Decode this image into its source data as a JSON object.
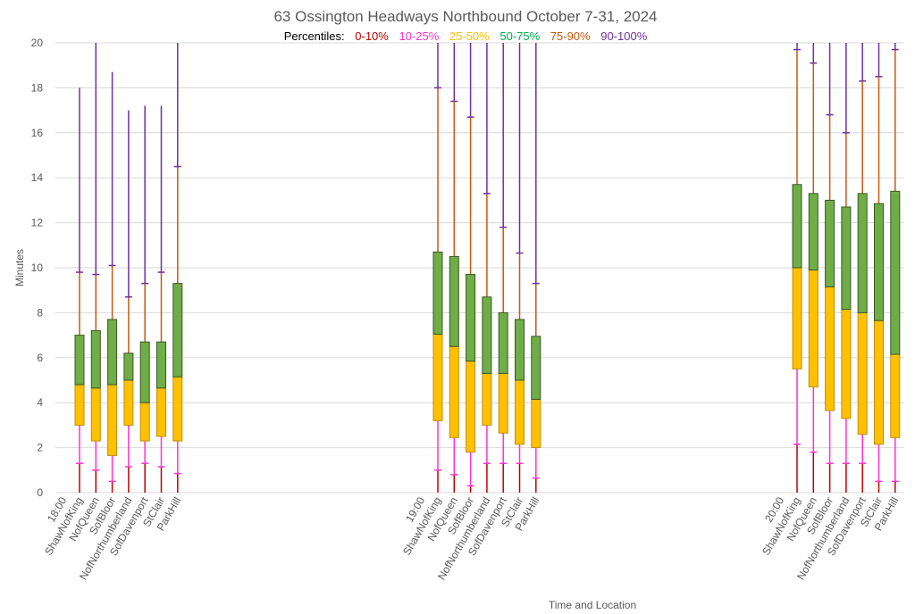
{
  "chart_data": {
    "type": "box",
    "title": "63 Ossington Headways Northbound October 7-31, 2024",
    "legend": {
      "prefix": "Percentiles:",
      "items": [
        {
          "label": "0-10%",
          "color": "#c00000"
        },
        {
          "label": "10-25%",
          "color": "#ff33cc"
        },
        {
          "label": "25-50%",
          "color": "#ffc000"
        },
        {
          "label": "50-75%",
          "color": "#00b050"
        },
        {
          "label": "75-90%",
          "color": "#c55a11"
        },
        {
          "label": "90-100%",
          "color": "#7030a0"
        }
      ]
    },
    "xlabel": "Time and Location",
    "ylabel": "Minutes",
    "ylim": [
      0,
      20
    ],
    "yticks": [
      0,
      2,
      4,
      6,
      8,
      10,
      12,
      14,
      16,
      18,
      20
    ],
    "gridlines": true,
    "colors": {
      "box_lower": "#ffc000",
      "box_upper": "#70ad47",
      "box_edge": "#385723",
      "whisker_0_10": "#c00000",
      "whisker_10_25": "#ff33cc",
      "whisker_75_90": "#c55a11",
      "whisker_90_100": "#7030a0"
    },
    "groups": [
      {
        "label": "18:00",
        "boxes": [
          {
            "location": "ShawNofKing",
            "p10": 1.3,
            "p25": 3.0,
            "p50": 4.8,
            "p75": 7.0,
            "p90": 9.8,
            "max": 18.0
          },
          {
            "location": "NofQueen",
            "p10": 1.0,
            "p25": 2.3,
            "p50": 4.65,
            "p75": 7.2,
            "p90": 9.7,
            "max": 20
          },
          {
            "location": "SofBloor",
            "p10": 0.5,
            "p25": 1.65,
            "p50": 4.8,
            "p75": 7.7,
            "p90": 10.1,
            "max": 18.7
          },
          {
            "location": "NofNorthumberland",
            "p10": 1.15,
            "p25": 3.0,
            "p50": 5.0,
            "p75": 6.2,
            "p90": 8.7,
            "max": 17.0
          },
          {
            "location": "SofDavenport",
            "p10": 1.3,
            "p25": 2.3,
            "p50": 4.0,
            "p75": 6.7,
            "p90": 9.3,
            "max": 17.2
          },
          {
            "location": "StClair",
            "p10": 1.15,
            "p25": 2.5,
            "p50": 4.65,
            "p75": 6.7,
            "p90": 9.8,
            "max": 17.2
          },
          {
            "location": "ParkHill",
            "p10": 0.85,
            "p25": 2.3,
            "p50": 5.15,
            "p75": 9.3,
            "p90": 14.5,
            "max": 20
          }
        ]
      },
      {
        "label": "19:00",
        "boxes": [
          {
            "location": "ShawNofKing",
            "p10": 1.0,
            "p25": 3.2,
            "p50": 7.05,
            "p75": 10.7,
            "p90": 18.0,
            "max": 20
          },
          {
            "location": "NofQueen",
            "p10": 0.8,
            "p25": 2.45,
            "p50": 6.5,
            "p75": 10.5,
            "p90": 17.4,
            "max": 20
          },
          {
            "location": "SofBloor",
            "p10": 0.3,
            "p25": 1.8,
            "p50": 5.85,
            "p75": 9.7,
            "p90": 16.7,
            "max": 20
          },
          {
            "location": "NofNorthumberland",
            "p10": 1.3,
            "p25": 3.0,
            "p50": 5.3,
            "p75": 8.7,
            "p90": 13.3,
            "max": 20
          },
          {
            "location": "SofDavenport",
            "p10": 1.3,
            "p25": 2.65,
            "p50": 5.3,
            "p75": 8.0,
            "p90": 11.8,
            "max": 20
          },
          {
            "location": "StClair",
            "p10": 1.3,
            "p25": 2.15,
            "p50": 5.0,
            "p75": 7.7,
            "p90": 10.65,
            "max": 20
          },
          {
            "location": "ParkHill",
            "p10": 0.65,
            "p25": 2.0,
            "p50": 4.15,
            "p75": 6.95,
            "p90": 9.3,
            "max": 20
          }
        ]
      },
      {
        "label": "20:00",
        "boxes": [
          {
            "location": "ShawNofKing",
            "p10": 2.15,
            "p25": 5.5,
            "p50": 10.0,
            "p75": 13.7,
            "p90": 19.7,
            "max": 20
          },
          {
            "location": "NofQueen",
            "p10": 1.8,
            "p25": 4.7,
            "p50": 9.9,
            "p75": 13.3,
            "p90": 19.1,
            "max": 20
          },
          {
            "location": "SofBloor",
            "p10": 1.3,
            "p25": 3.65,
            "p50": 9.15,
            "p75": 13.0,
            "p90": 16.8,
            "max": 20
          },
          {
            "location": "NofNorthumberland",
            "p10": 1.3,
            "p25": 3.3,
            "p50": 8.15,
            "p75": 12.7,
            "p90": 16.0,
            "max": 20
          },
          {
            "location": "SofDavenport",
            "p10": 1.3,
            "p25": 2.6,
            "p50": 8.0,
            "p75": 13.3,
            "p90": 18.3,
            "max": 20
          },
          {
            "location": "StClair",
            "p10": 0.5,
            "p25": 2.15,
            "p50": 7.65,
            "p75": 12.85,
            "p90": 18.5,
            "max": 20
          },
          {
            "location": "ParkHill",
            "p10": 0.5,
            "p25": 2.45,
            "p50": 6.15,
            "p75": 13.4,
            "p90": 19.7,
            "max": 20
          }
        ]
      }
    ]
  }
}
